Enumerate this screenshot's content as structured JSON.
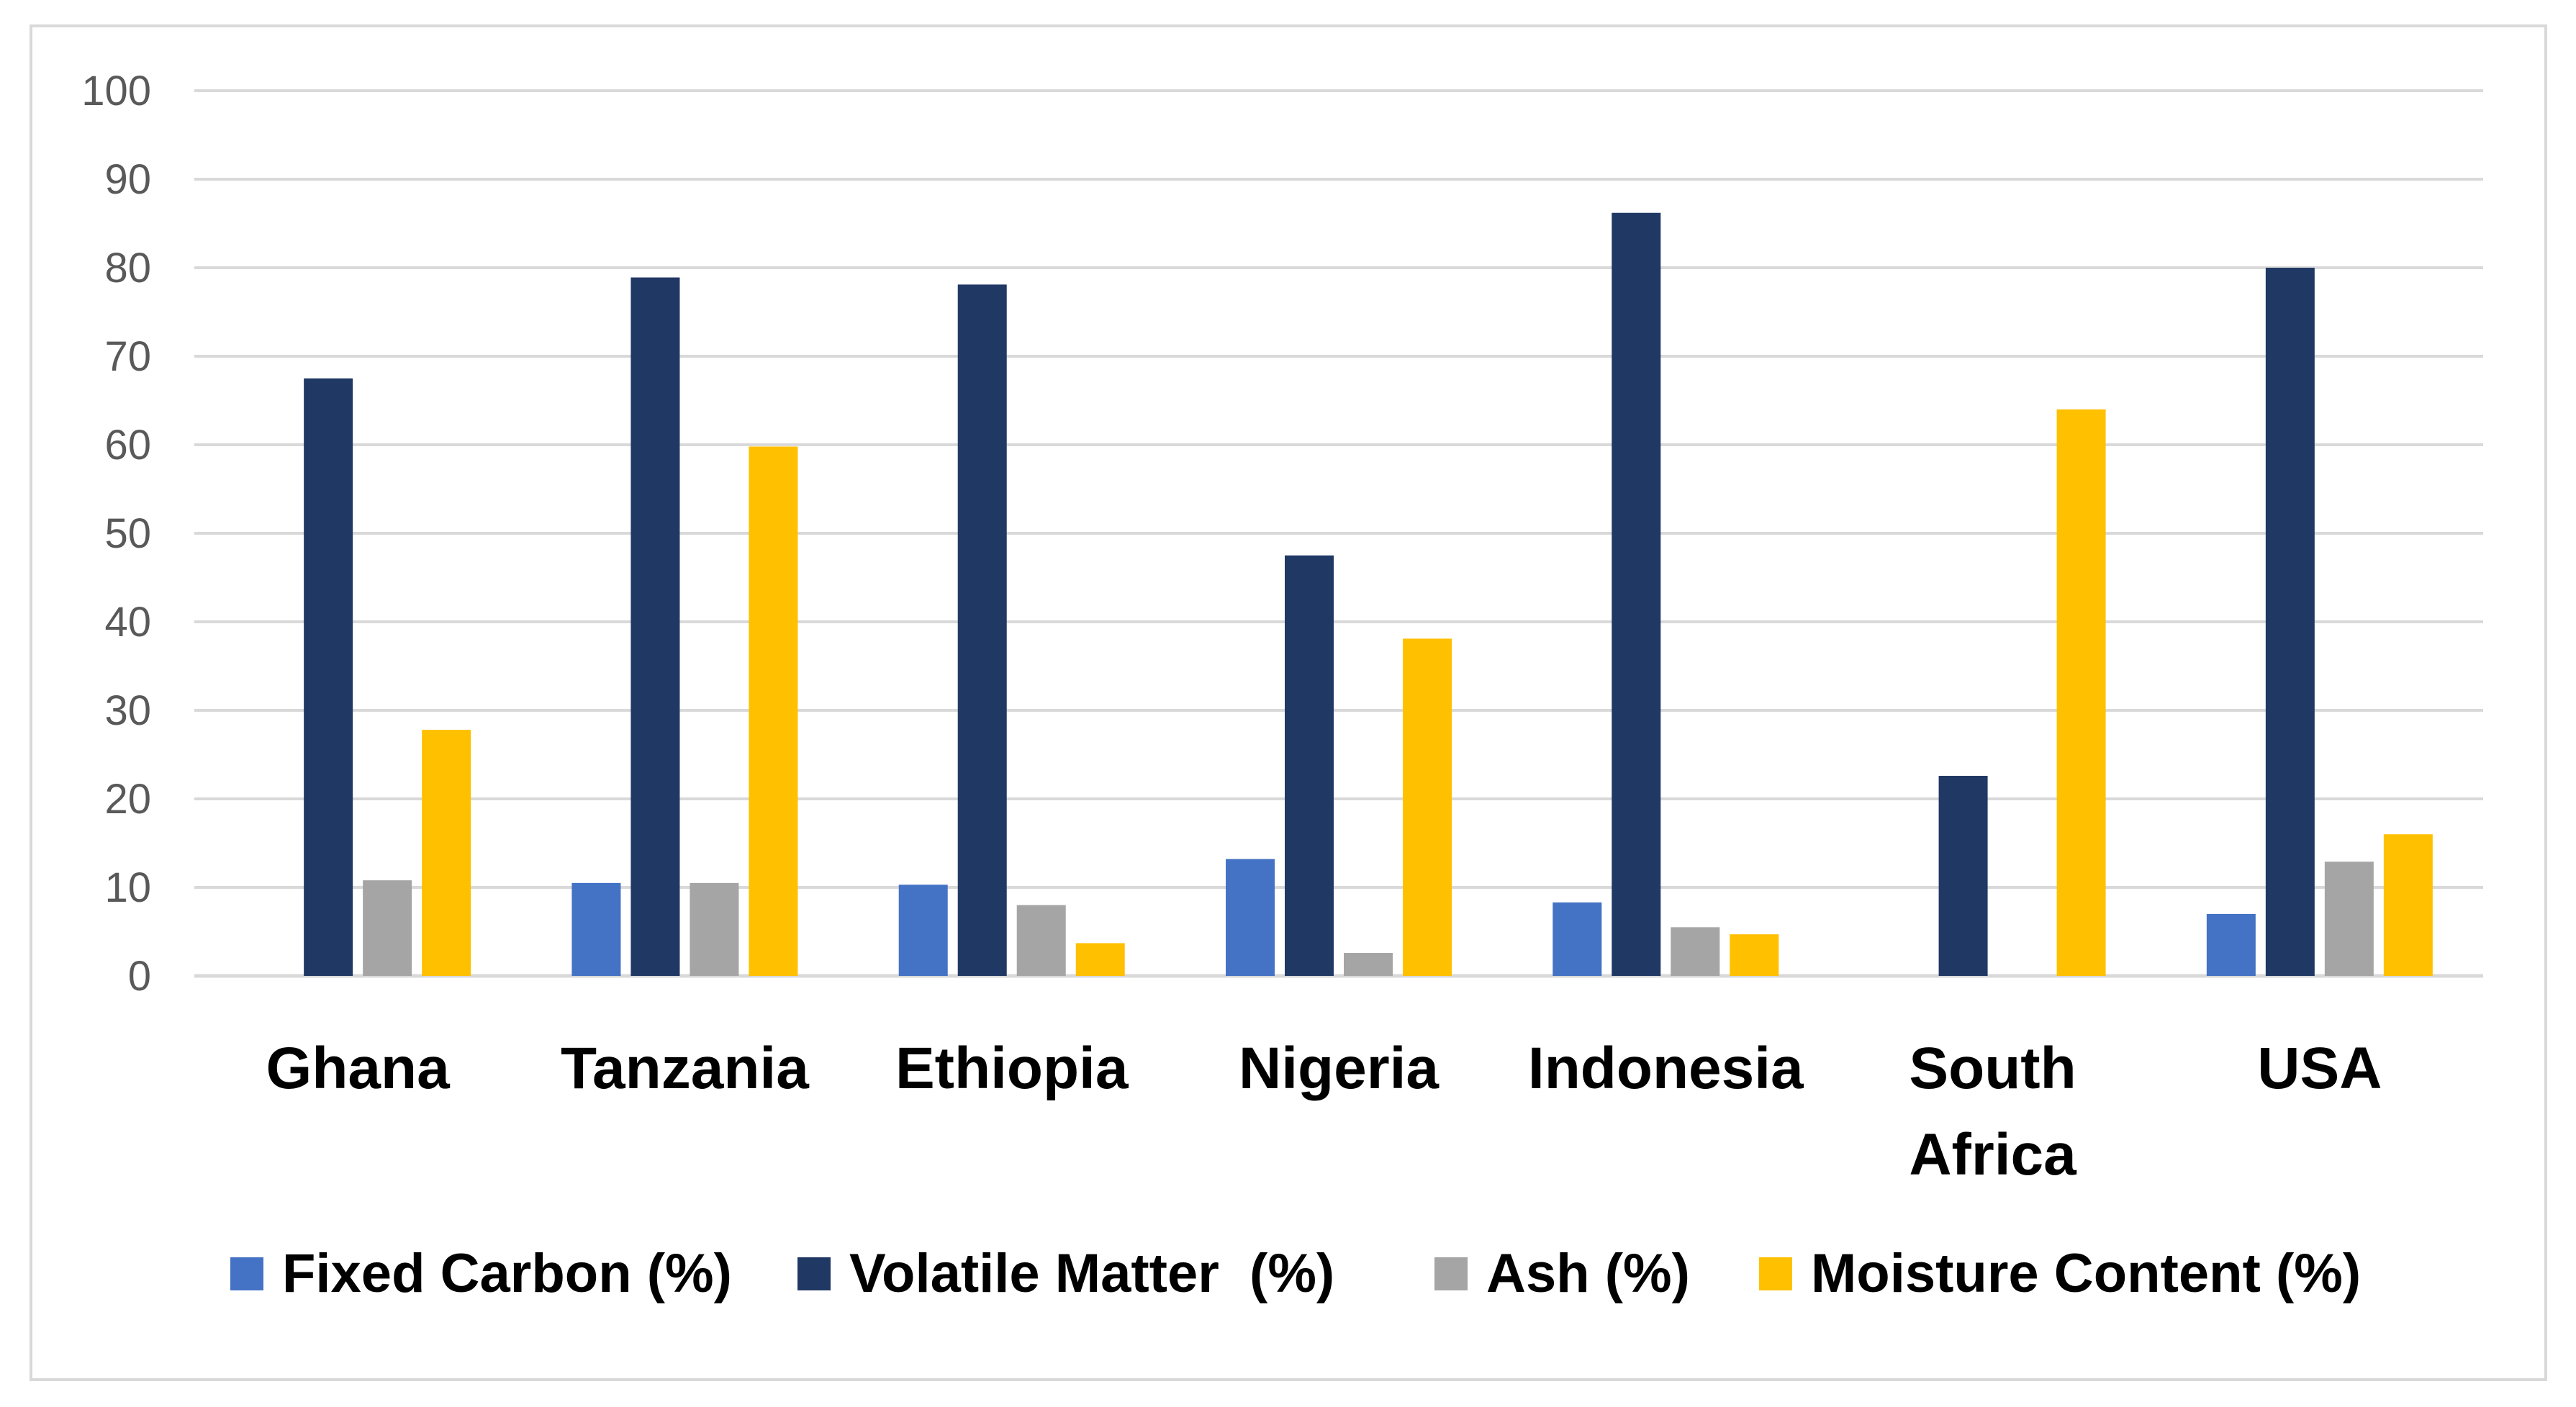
{
  "chart_data": {
    "type": "bar",
    "title": "",
    "xlabel": "",
    "ylabel": "",
    "ylim": [
      0,
      100
    ],
    "yticks": [
      "0",
      "10",
      "20",
      "30",
      "40",
      "50",
      "60",
      "70",
      "80",
      "90",
      "100"
    ],
    "grid": true,
    "legend_position": "bottom",
    "categories": [
      [
        "Ghana"
      ],
      [
        "Tanzania"
      ],
      [
        "Ethiopia"
      ],
      [
        "Nigeria"
      ],
      [
        "Indonesia"
      ],
      [
        "South",
        "Africa"
      ],
      [
        "USA"
      ]
    ],
    "series": [
      {
        "name": "Fixed Carbon (%)",
        "color": "#4472c4",
        "values": [
          null,
          10.5,
          10.3,
          13.2,
          8.3,
          null,
          7.0
        ]
      },
      {
        "name": "Volatile Matter  (%)",
        "color": "#203864",
        "values": [
          67.5,
          78.9,
          78.1,
          47.5,
          86.2,
          22.6,
          80.0
        ]
      },
      {
        "name": "Ash (%)",
        "color": "#a5a5a5",
        "values": [
          10.8,
          10.5,
          8.0,
          2.6,
          5.5,
          null,
          12.9
        ]
      },
      {
        "name": "Moisture Content (%)",
        "color": "#ffc000",
        "values": [
          27.8,
          59.8,
          3.7,
          38.1,
          4.7,
          64.0,
          16.0
        ]
      }
    ]
  },
  "style": {
    "grid_color": "#d9d9d9",
    "axis_color": "#d9d9d9",
    "frame_color": "#d9d9d9"
  }
}
